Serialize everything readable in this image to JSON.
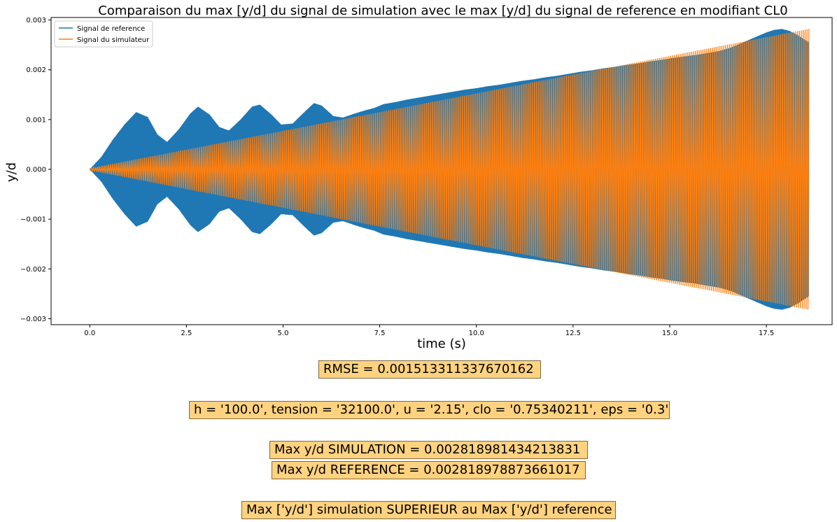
{
  "chart_data": {
    "type": "line",
    "title": "Comparaison du max [y/d] du signal de simulation avec le max [y/d] du signal de reference en modifiant CL0",
    "xlabel": "time (s)",
    "ylabel": "y/d",
    "xlim": [
      -1.0,
      19.2
    ],
    "ylim": [
      -0.00312,
      0.00305
    ],
    "xticks": [
      0.0,
      2.5,
      5.0,
      7.5,
      10.0,
      12.5,
      15.0,
      17.5
    ],
    "xtick_labels": [
      "0.0",
      "2.5",
      "5.0",
      "7.5",
      "10.0",
      "12.5",
      "15.0",
      "17.5"
    ],
    "yticks": [
      -0.003,
      -0.002,
      -0.001,
      0.0,
      0.001,
      0.002,
      0.003
    ],
    "ytick_labels": [
      "−0.003",
      "−0.002",
      "−0.001",
      "0.000",
      "0.001",
      "0.002",
      "0.003"
    ],
    "grid": false,
    "legend_position": "upper-left",
    "series": [
      {
        "name": "Signal de reference",
        "color": "#1f77b4",
        "envelope": {
          "x": [
            0.0,
            0.3,
            0.6,
            0.9,
            1.2,
            1.5,
            1.75,
            2.0,
            2.3,
            2.6,
            2.8,
            3.1,
            3.35,
            3.6,
            3.9,
            4.2,
            4.4,
            4.7,
            4.95,
            5.25,
            5.55,
            5.8,
            6.0,
            6.3,
            6.55,
            6.85,
            7.1,
            7.35,
            7.6,
            7.9,
            8.2,
            8.5,
            8.8,
            9.1,
            9.4,
            9.7,
            10.0,
            10.3,
            10.6,
            10.9,
            11.2,
            11.5,
            11.8,
            12.1,
            12.4,
            12.7,
            13.0,
            13.3,
            13.6,
            13.9,
            14.2,
            14.5,
            14.8,
            15.1,
            15.4,
            15.7,
            16.0,
            16.3,
            16.6,
            16.9,
            17.2,
            17.5,
            17.7,
            17.9,
            18.1,
            18.3,
            18.5,
            18.6
          ],
          "max": [
            0.0,
            0.00025,
            0.0006,
            0.0009,
            0.00115,
            0.00105,
            0.0007,
            0.00055,
            0.0008,
            0.00112,
            0.00126,
            0.0011,
            0.00085,
            0.00078,
            0.001,
            0.00126,
            0.0013,
            0.0011,
            0.0009,
            0.00092,
            0.00115,
            0.00133,
            0.00128,
            0.00107,
            0.00104,
            0.00112,
            0.00118,
            0.00123,
            0.00131,
            0.00135,
            0.0014,
            0.00144,
            0.00148,
            0.00152,
            0.00156,
            0.0016,
            0.00163,
            0.00167,
            0.0017,
            0.00174,
            0.00178,
            0.00181,
            0.00185,
            0.00188,
            0.00192,
            0.00196,
            0.00199,
            0.00203,
            0.00206,
            0.0021,
            0.00213,
            0.00217,
            0.0022,
            0.00224,
            0.00227,
            0.0023,
            0.00234,
            0.00238,
            0.00245,
            0.00255,
            0.00265,
            0.00275,
            0.0028,
            0.00282,
            0.00278,
            0.0027,
            0.0026,
            0.00255
          ]
        }
      },
      {
        "name": "Signal du simulateur",
        "color": "#ff7f0e",
        "envelope": {
          "x": [
            0.0,
            18.6
          ],
          "max": [
            2e-05,
            0.00282
          ]
        }
      }
    ]
  },
  "annotations": {
    "rmse": "RMSE = 0.001513311337670162",
    "params": "h = '100.0', tension = '32100.0', u = '2.15', clo = '0.75340211', eps = '0.3'",
    "max_sim": "Max y/d SIMULATION = 0.002818981434213831",
    "max_ref": "Max y/d REFERENCE = 0.002818978873661017",
    "verdict": "Max ['y/d'] simulation SUPERIEUR au Max ['y/d'] reference"
  },
  "colors": {
    "annotation_box": "#ffd280",
    "annotation_border": "#7f6a40"
  }
}
